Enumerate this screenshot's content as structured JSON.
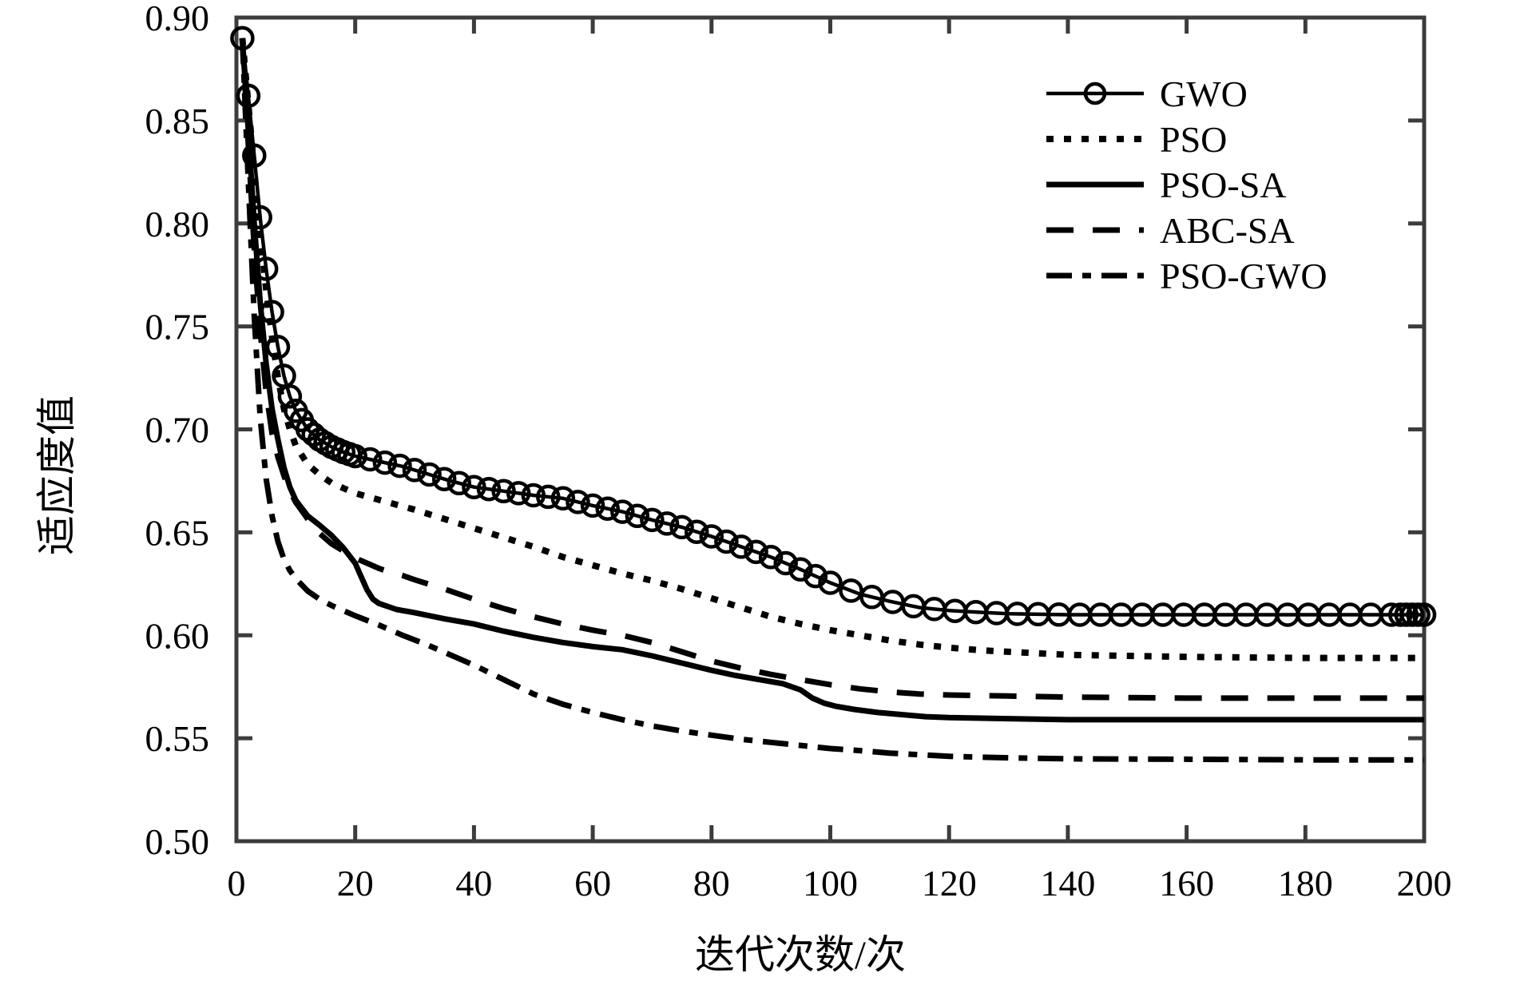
{
  "chart_data": {
    "type": "line",
    "title": "",
    "xlabel": "迭代次数/次",
    "ylabel": "适应度值",
    "xlim": [
      0,
      200
    ],
    "ylim": [
      0.5,
      0.9
    ],
    "grid": false,
    "legend_position": "upper right",
    "axis_color": "#3c3c3c",
    "line_color": "#000000",
    "xticks": [
      0,
      20,
      40,
      60,
      80,
      100,
      120,
      140,
      160,
      180,
      200
    ],
    "xticklabels": [
      "0",
      "20",
      "40",
      "60",
      "80",
      "100",
      "120",
      "140",
      "160",
      "180",
      "200"
    ],
    "yticks": [
      0.5,
      0.55,
      0.6,
      0.65,
      0.7,
      0.75,
      0.8,
      0.85,
      0.9
    ],
    "yticklabels": [
      "0.50",
      "0.55",
      "0.60",
      "0.65",
      "0.70",
      "0.75",
      "0.80",
      "0.85",
      "0.90"
    ],
    "series": [
      {
        "name": "PSO-GWO",
        "style": "dashdot",
        "points": [
          [
            1,
            0.89
          ],
          [
            2,
            0.82
          ],
          [
            3,
            0.755
          ],
          [
            4,
            0.706
          ],
          [
            5,
            0.676
          ],
          [
            6,
            0.658
          ],
          [
            7,
            0.6455
          ],
          [
            8,
            0.637
          ],
          [
            9,
            0.6315
          ],
          [
            10,
            0.6275
          ],
          [
            12,
            0.6215
          ],
          [
            14,
            0.6175
          ],
          [
            16,
            0.6145
          ],
          [
            18,
            0.612
          ],
          [
            20,
            0.6095
          ],
          [
            24,
            0.605
          ],
          [
            28,
            0.6
          ],
          [
            32,
            0.5955
          ],
          [
            36,
            0.5905
          ],
          [
            40,
            0.5855
          ],
          [
            45,
            0.5785
          ],
          [
            50,
            0.5715
          ],
          [
            55,
            0.5665
          ],
          [
            60,
            0.5625
          ],
          [
            65,
            0.559
          ],
          [
            70,
            0.556
          ],
          [
            75,
            0.5535
          ],
          [
            80,
            0.5515
          ],
          [
            85,
            0.5495
          ],
          [
            90,
            0.548
          ],
          [
            95,
            0.5465
          ],
          [
            100,
            0.545
          ],
          [
            105,
            0.544
          ],
          [
            110,
            0.5428
          ],
          [
            115,
            0.542
          ],
          [
            120,
            0.5412
          ],
          [
            130,
            0.5405
          ],
          [
            140,
            0.54
          ],
          [
            160,
            0.5398
          ],
          [
            180,
            0.5395
          ],
          [
            200,
            0.5395
          ]
        ]
      },
      {
        "name": "ABC-SA",
        "style": "dashed",
        "points": [
          [
            1,
            0.89
          ],
          [
            2,
            0.838
          ],
          [
            3,
            0.788
          ],
          [
            4,
            0.748
          ],
          [
            5,
            0.718
          ],
          [
            6,
            0.698
          ],
          [
            7,
            0.6865
          ],
          [
            8,
            0.6775
          ],
          [
            9,
            0.67
          ],
          [
            10,
            0.6645
          ],
          [
            12,
            0.6565
          ],
          [
            14,
            0.6495
          ],
          [
            16,
            0.6445
          ],
          [
            18,
            0.641
          ],
          [
            20,
            0.6375
          ],
          [
            22,
            0.635
          ],
          [
            24,
            0.6325
          ],
          [
            26,
            0.6305
          ],
          [
            28,
            0.629
          ],
          [
            30,
            0.627
          ],
          [
            35,
            0.6225
          ],
          [
            40,
            0.6175
          ],
          [
            45,
            0.613
          ],
          [
            50,
            0.609
          ],
          [
            55,
            0.6055
          ],
          [
            60,
            0.6025
          ],
          [
            65,
            0.6
          ],
          [
            70,
            0.5965
          ],
          [
            75,
            0.592
          ],
          [
            80,
            0.5875
          ],
          [
            85,
            0.584
          ],
          [
            90,
            0.581
          ],
          [
            95,
            0.5785
          ],
          [
            100,
            0.576
          ],
          [
            105,
            0.574
          ],
          [
            110,
            0.5725
          ],
          [
            115,
            0.5715
          ],
          [
            120,
            0.571
          ],
          [
            130,
            0.5705
          ],
          [
            140,
            0.57
          ],
          [
            160,
            0.5695
          ],
          [
            180,
            0.5695
          ],
          [
            200,
            0.5695
          ]
        ]
      },
      {
        "name": "PSO-SA",
        "style": "solid",
        "points": [
          [
            1,
            0.89
          ],
          [
            2,
            0.845
          ],
          [
            3,
            0.8
          ],
          [
            4,
            0.762
          ],
          [
            5,
            0.732
          ],
          [
            6,
            0.71
          ],
          [
            7,
            0.695
          ],
          [
            8,
            0.6815
          ],
          [
            9,
            0.672
          ],
          [
            10,
            0.6655
          ],
          [
            12,
            0.658
          ],
          [
            14,
            0.6535
          ],
          [
            16,
            0.6485
          ],
          [
            18,
            0.6425
          ],
          [
            20,
            0.635
          ],
          [
            21,
            0.6285
          ],
          [
            22,
            0.622
          ],
          [
            23,
            0.6175
          ],
          [
            24,
            0.6155
          ],
          [
            25,
            0.6145
          ],
          [
            27,
            0.6125
          ],
          [
            30,
            0.611
          ],
          [
            35,
            0.608
          ],
          [
            40,
            0.6055
          ],
          [
            45,
            0.602
          ],
          [
            50,
            0.599
          ],
          [
            55,
            0.5965
          ],
          [
            60,
            0.5945
          ],
          [
            65,
            0.593
          ],
          [
            70,
            0.59
          ],
          [
            75,
            0.5865
          ],
          [
            80,
            0.583
          ],
          [
            84,
            0.5805
          ],
          [
            88,
            0.5785
          ],
          [
            92,
            0.5765
          ],
          [
            95,
            0.5735
          ],
          [
            97,
            0.5695
          ],
          [
            99,
            0.567
          ],
          [
            101,
            0.5655
          ],
          [
            104,
            0.564
          ],
          [
            108,
            0.5625
          ],
          [
            112,
            0.5615
          ],
          [
            116,
            0.5605
          ],
          [
            120,
            0.56
          ],
          [
            130,
            0.5595
          ],
          [
            140,
            0.559
          ],
          [
            160,
            0.559
          ],
          [
            180,
            0.559
          ],
          [
            200,
            0.559
          ]
        ]
      },
      {
        "name": "PSO",
        "style": "dotted",
        "points": [
          [
            1,
            0.89
          ],
          [
            2,
            0.858
          ],
          [
            3,
            0.826
          ],
          [
            4,
            0.795
          ],
          [
            5,
            0.768
          ],
          [
            6,
            0.745
          ],
          [
            7,
            0.725
          ],
          [
            8,
            0.71
          ],
          [
            9,
            0.7
          ],
          [
            10,
            0.692
          ],
          [
            12,
            0.683
          ],
          [
            14,
            0.678
          ],
          [
            16,
            0.674
          ],
          [
            18,
            0.6715
          ],
          [
            20,
            0.669
          ],
          [
            25,
            0.665
          ],
          [
            30,
            0.661
          ],
          [
            35,
            0.6565
          ],
          [
            40,
            0.652
          ],
          [
            45,
            0.6475
          ],
          [
            50,
            0.643
          ],
          [
            55,
            0.638
          ],
          [
            60,
            0.634
          ],
          [
            65,
            0.63
          ],
          [
            70,
            0.6265
          ],
          [
            75,
            0.6225
          ],
          [
            80,
            0.618
          ],
          [
            85,
            0.6135
          ],
          [
            90,
            0.609
          ],
          [
            95,
            0.6055
          ],
          [
            100,
            0.6025
          ],
          [
            105,
            0.6
          ],
          [
            110,
            0.5975
          ],
          [
            115,
            0.5955
          ],
          [
            120,
            0.594
          ],
          [
            125,
            0.5928
          ],
          [
            130,
            0.592
          ],
          [
            140,
            0.5905
          ],
          [
            150,
            0.59
          ],
          [
            160,
            0.5895
          ],
          [
            180,
            0.589
          ],
          [
            200,
            0.589
          ]
        ]
      },
      {
        "name": "GWO",
        "style": "solid-circle",
        "points": [
          [
            1,
            0.89
          ],
          [
            2,
            0.862
          ],
          [
            3,
            0.833
          ],
          [
            4,
            0.803
          ],
          [
            5,
            0.778
          ],
          [
            6,
            0.757
          ],
          [
            7,
            0.74
          ],
          [
            8,
            0.726
          ],
          [
            9,
            0.716
          ],
          [
            10,
            0.709
          ],
          [
            12,
            0.7
          ],
          [
            14,
            0.695
          ],
          [
            16,
            0.6915
          ],
          [
            18,
            0.689
          ],
          [
            20,
            0.687
          ],
          [
            24,
            0.6845
          ],
          [
            28,
            0.682
          ],
          [
            32,
            0.6785
          ],
          [
            36,
            0.675
          ],
          [
            40,
            0.672
          ],
          [
            45,
            0.67
          ],
          [
            50,
            0.668
          ],
          [
            55,
            0.6665
          ],
          [
            60,
            0.663
          ],
          [
            65,
            0.66
          ],
          [
            70,
            0.656
          ],
          [
            75,
            0.6525
          ],
          [
            80,
            0.648
          ],
          [
            85,
            0.643
          ],
          [
            90,
            0.638
          ],
          [
            95,
            0.632
          ],
          [
            100,
            0.6255
          ],
          [
            105,
            0.62
          ],
          [
            110,
            0.6165
          ],
          [
            115,
            0.6135
          ],
          [
            120,
            0.612
          ],
          [
            125,
            0.6112
          ],
          [
            130,
            0.6105
          ],
          [
            140,
            0.61
          ],
          [
            160,
            0.61
          ],
          [
            180,
            0.61
          ],
          [
            200,
            0.61
          ]
        ]
      }
    ],
    "legend": [
      {
        "label": "GWO",
        "style": "solid-circle"
      },
      {
        "label": "PSO",
        "style": "dotted"
      },
      {
        "label": "PSO-SA",
        "style": "solid"
      },
      {
        "label": "ABC-SA",
        "style": "dashed"
      },
      {
        "label": "PSO-GWO",
        "style": "dashdot"
      }
    ]
  }
}
